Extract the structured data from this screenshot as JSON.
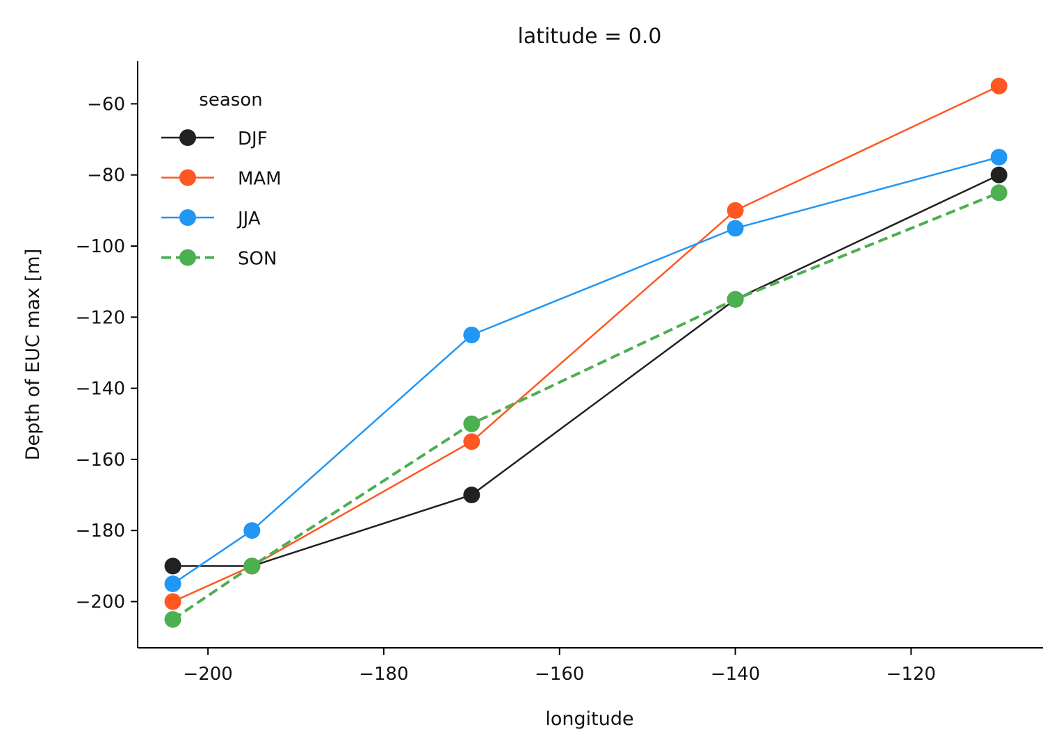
{
  "chart_data": {
    "type": "line",
    "title": "latitude = 0.0",
    "xlabel": "longitude",
    "ylabel": "Depth of EUC max [m]",
    "xlim": [
      -208,
      -105
    ],
    "ylim": [
      -213,
      -48
    ],
    "xticks": [
      -200,
      -180,
      -160,
      -140,
      -120
    ],
    "yticks": [
      -60,
      -80,
      -100,
      -120,
      -140,
      -160,
      -180,
      -200
    ],
    "x": [
      -204,
      -195,
      -170,
      -140,
      -110
    ],
    "grid": false,
    "legend": {
      "title": "season",
      "placement": "upper-left"
    },
    "series": [
      {
        "name": "DJF",
        "color": "#212121",
        "dashed": false,
        "values": [
          -190,
          -190,
          -170,
          -115,
          -80
        ]
      },
      {
        "name": "MAM",
        "color": "#ff5722",
        "dashed": false,
        "values": [
          -200,
          -190,
          -155,
          -90,
          -55
        ]
      },
      {
        "name": "JJA",
        "color": "#2196f3",
        "dashed": false,
        "values": [
          -195,
          -180,
          -125,
          -95,
          -75
        ]
      },
      {
        "name": "SON",
        "color": "#4caf50",
        "dashed": true,
        "values": [
          -205,
          -190,
          -150,
          -115,
          -85
        ]
      }
    ]
  }
}
